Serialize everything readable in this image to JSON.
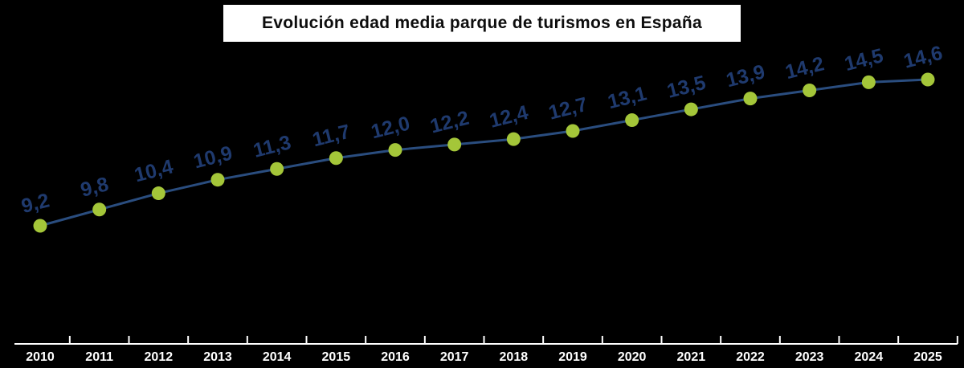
{
  "title": "Evolución edad media parque de turismos en España",
  "chart_data": {
    "type": "line",
    "title": "Evolución edad media parque de turismos en España",
    "categories": [
      "2010",
      "2011",
      "2012",
      "2013",
      "2014",
      "2015",
      "2016",
      "2017",
      "2018",
      "2019",
      "2020",
      "2021",
      "2022",
      "2023",
      "2024",
      "2025"
    ],
    "values": [
      9.2,
      9.8,
      10.4,
      10.9,
      11.3,
      11.7,
      12.0,
      12.2,
      12.4,
      12.7,
      13.1,
      13.5,
      13.9,
      14.2,
      14.5,
      14.6
    ],
    "value_labels": [
      "9,2",
      "9,8",
      "10,4",
      "10,9",
      "11,3",
      "11,7",
      "12,0",
      "12,2",
      "12,4",
      "12,7",
      "13,1",
      "13,5",
      "13,9",
      "14,2",
      "14,5",
      "14,6"
    ],
    "xlabel": "",
    "ylabel": "",
    "ylim": [
      9,
      15
    ],
    "grid": false,
    "legend": "none",
    "colors": {
      "background": "#000000",
      "line": "#2a4d7f",
      "marker": "#a4c639",
      "point_label": "#1f3a6e",
      "axis": "#ffffff",
      "year_label": "#ffffff",
      "title_bg": "#ffffff",
      "title_text": "#0d0d0d"
    }
  }
}
